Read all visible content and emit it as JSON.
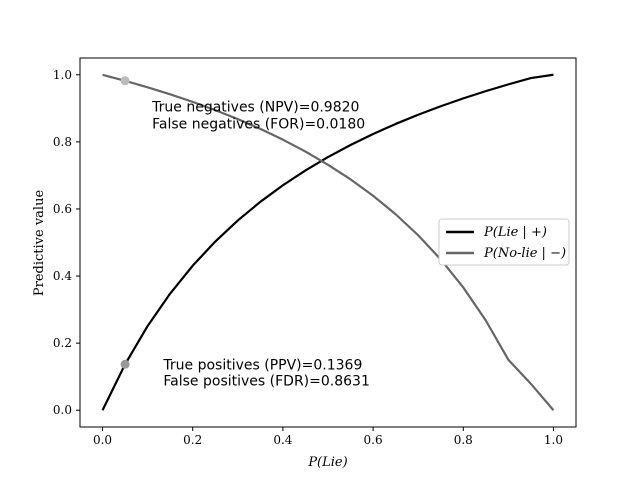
{
  "chart_data": {
    "type": "line",
    "title": "",
    "xlabel": "P(Lie)",
    "ylabel": "Predictive value",
    "xlim": [
      -0.05,
      1.05
    ],
    "ylim": [
      -0.05,
      1.05
    ],
    "xticks": [
      0.0,
      0.2,
      0.4,
      0.6,
      0.8,
      1.0
    ],
    "yticks": [
      0.0,
      0.2,
      0.4,
      0.6,
      0.8,
      1.0
    ],
    "tick_labels_x": [
      "0.0",
      "0.2",
      "0.4",
      "0.6",
      "0.8",
      "1.0"
    ],
    "tick_labels_y": [
      "0.0",
      "0.2",
      "0.4",
      "0.6",
      "0.8",
      "1.0"
    ],
    "grid": false,
    "legend_position": "center-right",
    "series": [
      {
        "name": "P(Lie | +)",
        "color": "#000000",
        "x": [
          0.0,
          0.05,
          0.1,
          0.15,
          0.2,
          0.25,
          0.3,
          0.35,
          0.4,
          0.45,
          0.5,
          0.55,
          0.6,
          0.65,
          0.7,
          0.75,
          0.8,
          0.85,
          0.9,
          0.95,
          1.0
        ],
        "y": [
          0.0,
          0.1369,
          0.2512,
          0.3479,
          0.4309,
          0.5028,
          0.5657,
          0.6213,
          0.6707,
          0.7149,
          0.7547,
          0.7907,
          0.8235,
          0.8534,
          0.8809,
          0.9061,
          0.9296,
          0.9512,
          0.9714,
          0.9902,
          1.0
        ]
      },
      {
        "name": "P(No-lie | −)",
        "color": "#666666",
        "x": [
          0.0,
          0.05,
          0.1,
          0.15,
          0.2,
          0.25,
          0.3,
          0.35,
          0.4,
          0.45,
          0.5,
          0.55,
          0.6,
          0.65,
          0.7,
          0.75,
          0.8,
          0.85,
          0.9,
          0.95,
          1.0
        ],
        "y": [
          1.0,
          0.982,
          0.9626,
          0.9418,
          0.9192,
          0.8946,
          0.8679,
          0.8386,
          0.8065,
          0.7711,
          0.7317,
          0.6883,
          0.6394,
          0.5842,
          0.5216,
          0.4495,
          0.3659,
          0.2675,
          0.1504,
          0.0787,
          0.0
        ]
      }
    ],
    "markers": [
      {
        "x": 0.05,
        "y": 0.1369,
        "color": "#999999"
      },
      {
        "x": 0.05,
        "y": 0.982,
        "color": "#bbbbbb"
      }
    ],
    "annotations": [
      {
        "text": "True negatives (NPV)=0.9820",
        "x": 0.11,
        "y": 0.905
      },
      {
        "text": "False negatives (FOR)=0.0180",
        "x": 0.11,
        "y": 0.855
      },
      {
        "text": "True positives (PPV)=0.1369",
        "x": 0.135,
        "y": 0.137
      },
      {
        "text": "False positives (FDR)=0.8631",
        "x": 0.135,
        "y": 0.088
      }
    ]
  }
}
